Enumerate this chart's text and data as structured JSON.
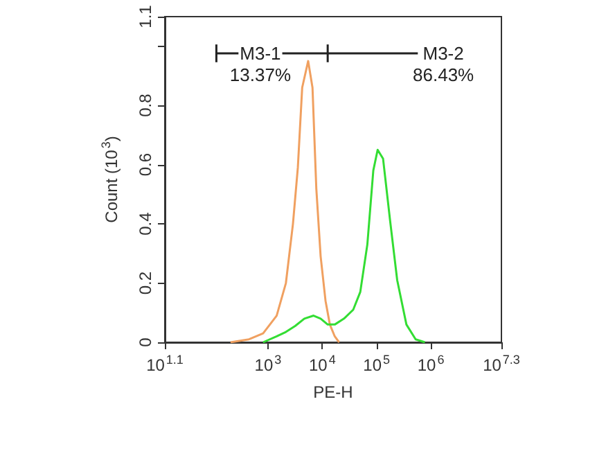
{
  "chart_data": {
    "type": "line",
    "xlabel": "PE-H",
    "ylabel": "Count (10$^{3}$)",
    "log": "x",
    "grid": false,
    "marker": "none",
    "line_style": "solid",
    "xlim": [
      12.589,
      19952623
    ],
    "xticks": [
      {
        "value": 12.589,
        "label": "10$^{1.1}$"
      },
      {
        "value": 1000,
        "label": "10$^{3}$"
      },
      {
        "value": 10000,
        "label": "10$^{4}$"
      },
      {
        "value": 100000,
        "label": "10$^{5}$"
      },
      {
        "value": 1000000,
        "label": "10$^{6}$"
      },
      {
        "value": 19952623,
        "label": "10$^{7.3}$"
      }
    ],
    "ylim": [
      0,
      1.1
    ],
    "yticks": [
      0,
      0.2,
      0.4,
      0.6,
      0.8,
      {
        "value": 1.0,
        "label": null
      },
      1.1
    ],
    "series": [
      {
        "color": "#f0a060",
        "x": [
          204,
          447,
          813,
          1445,
          2138,
          2884,
          3548,
          4266,
          5495,
          6607,
          7762,
          9333,
          11482,
          13804,
          16982,
          20417
        ],
        "values": [
          0,
          0.01,
          0.03,
          0.09,
          0.2,
          0.4,
          0.59,
          0.86,
          0.95,
          0.86,
          0.52,
          0.29,
          0.14,
          0.06,
          0.02,
          0
        ]
      },
      {
        "color": "#33dd33",
        "x": [
          813,
          1445,
          2138,
          3162,
          4677,
          6918,
          9333,
          12589,
          16982,
          25119,
          37154,
          50119,
          67608,
          87096,
          104713,
          131826,
          177828,
          239883,
          354813,
          524807,
          776247
        ],
        "values": [
          0,
          0.02,
          0.035,
          0.055,
          0.08,
          0.09,
          0.08,
          0.06,
          0.06,
          0.08,
          0.11,
          0.17,
          0.33,
          0.58,
          0.65,
          0.62,
          0.41,
          0.21,
          0.06,
          0.01,
          0
        ]
      },
      {
        "color": "#222222",
        "x": [
          112,
          12589,
          575440
        ],
        "values": [
          0.976,
          0.976,
          0.976
        ],
        "errors": [
          0.03,
          0.03,
          null
        ]
      }
    ],
    "annotations": [
      {
        "text": "M3-1",
        "x": 724,
        "y": 0.976
      },
      {
        "text": "M3-2",
        "x": 1698244,
        "y": 0.976
      },
      "13.37%",
      "86.43%"
    ]
  }
}
